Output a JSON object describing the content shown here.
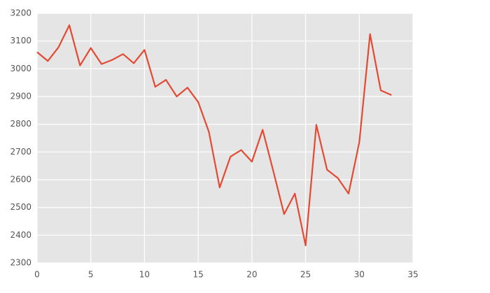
{
  "chart_data": {
    "type": "line",
    "x": [
      0,
      1,
      2,
      3,
      4,
      5,
      6,
      7,
      8,
      9,
      10,
      11,
      12,
      13,
      14,
      15,
      16,
      17,
      18,
      19,
      20,
      21,
      22,
      23,
      24,
      25,
      26,
      27,
      28,
      29,
      30,
      31,
      32,
      33
    ],
    "values": [
      3060,
      3028,
      3078,
      3157,
      3012,
      3075,
      3017,
      3032,
      3053,
      3020,
      3068,
      2935,
      2960,
      2900,
      2932,
      2880,
      2772,
      2572,
      2683,
      2707,
      2665,
      2780,
      2630,
      2476,
      2550,
      2363,
      2798,
      2636,
      2606,
      2550,
      2735,
      3125,
      2922,
      2905
    ],
    "color": "#e24a33",
    "xlim": [
      0,
      35
    ],
    "xticks": [
      0,
      5,
      10,
      15,
      20,
      25,
      30,
      35
    ],
    "ylim": [
      2300,
      3200
    ],
    "yticks": [
      2300,
      2400,
      2500,
      2600,
      2700,
      2800,
      2900,
      3000,
      3100,
      3200
    ],
    "grid": true
  }
}
